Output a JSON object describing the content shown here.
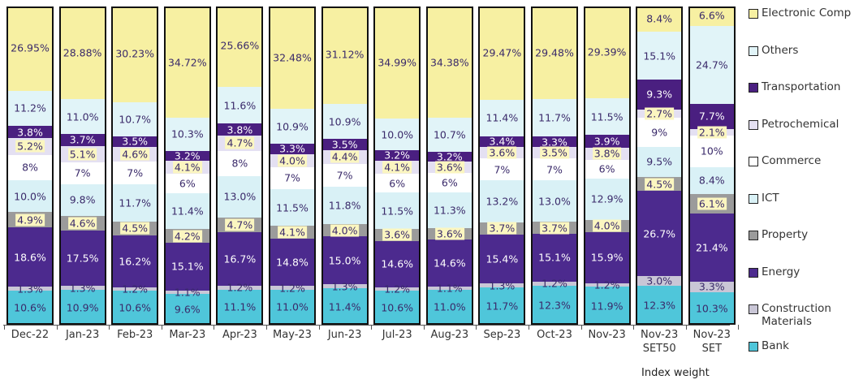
{
  "chart_data": {
    "type": "stacked_bar",
    "x_label": "Index weight",
    "categories": [
      "Dec-22",
      "Jan-23",
      "Feb-23",
      "Mar-23",
      "Apr-23",
      "May-23",
      "Jun-23",
      "Jul-23",
      "Aug-23",
      "Sep-23",
      "Oct-23",
      "Nov-23",
      "Nov-23\nSET50",
      "Nov-23\nSET"
    ],
    "ylim": [
      0,
      100
    ],
    "series": [
      {
        "name": "Bank",
        "color": "#4fc6da",
        "values": [
          10.6,
          10.9,
          10.6,
          9.6,
          11.1,
          11.0,
          11.4,
          10.6,
          11.0,
          11.7,
          12.3,
          11.9,
          12.3,
          10.3
        ],
        "value_labels": [
          "10.6%",
          "10.9%",
          "10.6%",
          "9.6%",
          "11.1%",
          "11.0%",
          "11.4%",
          "10.6%",
          "11.0%",
          "11.7%",
          "12.3%",
          "11.9%",
          "12.3%",
          "10.3%"
        ]
      },
      {
        "name": "Construction Materials",
        "color": "#c9c6d6",
        "values": [
          1.3,
          1.3,
          1.2,
          1.1,
          1.2,
          1.2,
          1.3,
          1.2,
          1.1,
          1.3,
          1.2,
          1.2,
          3.0,
          3.3
        ],
        "value_labels": [
          "1.3%",
          "1.3%",
          "1.2%",
          "1.1%",
          "1.2%",
          "1.2%",
          "1.3%",
          "1.2%",
          "1.1%",
          "1.3%",
          "1.2%",
          "1.2%",
          "3.0%",
          "3.3%"
        ]
      },
      {
        "name": "Energy",
        "color": "#4c2a8e",
        "values": [
          18.6,
          17.5,
          16.2,
          15.1,
          16.7,
          14.8,
          15.0,
          14.6,
          14.6,
          15.4,
          15.1,
          15.9,
          26.7,
          21.4
        ],
        "value_labels": [
          "18.6%",
          "17.5%",
          "16.2%",
          "15.1%",
          "16.7%",
          "14.8%",
          "15.0%",
          "14.6%",
          "14.6%",
          "15.4%",
          "15.1%",
          "15.9%",
          "26.7%",
          "21.4%"
        ]
      },
      {
        "name": "Property",
        "color": "#9b9b9b",
        "values": [
          4.9,
          4.6,
          4.5,
          4.2,
          4.7,
          4.1,
          4.0,
          3.6,
          3.6,
          3.7,
          3.7,
          4.0,
          4.5,
          6.1
        ],
        "value_labels": [
          "4.9%",
          "4.6%",
          "4.5%",
          "4.2%",
          "4.7%",
          "4.1%",
          "4.0%",
          "3.6%",
          "3.6%",
          "3.7%",
          "3.7%",
          "4.0%",
          "4.5%",
          "6.1%"
        ]
      },
      {
        "name": "ICT",
        "color": "#d9f1f6",
        "values": [
          10.0,
          9.8,
          11.7,
          11.4,
          13.0,
          11.5,
          11.8,
          11.5,
          11.3,
          13.2,
          13.0,
          12.9,
          9.5,
          8.4
        ],
        "value_labels": [
          "10.0%",
          "9.8%",
          "11.7%",
          "11.4%",
          "13.0%",
          "11.5%",
          "11.8%",
          "11.5%",
          "11.3%",
          "13.2%",
          "13.0%",
          "12.9%",
          "9.5%",
          "8.4%"
        ]
      },
      {
        "name": "Commerce",
        "color": "#ffffff",
        "values": [
          8,
          7,
          7,
          6,
          8,
          7,
          7,
          6,
          6,
          7,
          7,
          6,
          9,
          10
        ],
        "value_labels": [
          "8%",
          "7%",
          "7%",
          "6%",
          "8%",
          "7%",
          "7%",
          "6%",
          "6%",
          "7%",
          "7%",
          "6%",
          "9%",
          "10%"
        ]
      },
      {
        "name": "Petrochemical",
        "color": "#e4e0f2",
        "values": [
          5.2,
          5.1,
          4.6,
          4.1,
          4.7,
          4.0,
          4.4,
          4.1,
          3.6,
          3.6,
          3.5,
          3.8,
          2.7,
          2.1
        ],
        "value_labels": [
          "5.2%",
          "5.1%",
          "4.6%",
          "4.1%",
          "4.7%",
          "4.0%",
          "4.4%",
          "4.1%",
          "3.6%",
          "3.6%",
          "3.5%",
          "3.8%",
          "2.7%",
          "2.1%"
        ]
      },
      {
        "name": "Transportation",
        "color": "#4a1f80",
        "values": [
          3.8,
          3.7,
          3.5,
          3.2,
          3.8,
          3.3,
          3.5,
          3.2,
          3.2,
          3.4,
          3.3,
          3.9,
          9.3,
          7.7
        ],
        "value_labels": [
          "3.8%",
          "3.7%",
          "3.5%",
          "3.2%",
          "3.8%",
          "3.3%",
          "3.5%",
          "3.2%",
          "3.2%",
          "3.4%",
          "3.3%",
          "3.9%",
          "9.3%",
          "7.7%"
        ]
      },
      {
        "name": "Others",
        "color": "#e1f4f8",
        "values": [
          11.2,
          11.0,
          10.7,
          10.3,
          11.6,
          10.9,
          10.9,
          10.0,
          10.7,
          11.4,
          11.7,
          11.5,
          15.1,
          24.7
        ],
        "value_labels": [
          "11.2%",
          "11.0%",
          "10.7%",
          "10.3%",
          "11.6%",
          "10.9%",
          "10.9%",
          "10.0%",
          "10.7%",
          "11.4%",
          "11.7%",
          "11.5%",
          "15.1%",
          "24.7%"
        ]
      },
      {
        "name": "Electronic Comp",
        "color": "#f7f0a2",
        "values": [
          26.95,
          28.88,
          30.23,
          34.72,
          25.66,
          32.48,
          31.12,
          34.99,
          34.38,
          29.47,
          29.48,
          29.39,
          8.4,
          6.6
        ],
        "value_labels": [
          "26.95%",
          "28.88%",
          "30.23%",
          "34.72%",
          "25.66%",
          "32.48%",
          "31.12%",
          "34.99%",
          "34.38%",
          "29.47%",
          "29.48%",
          "29.39%",
          "8.4%",
          "6.6%"
        ]
      }
    ]
  }
}
